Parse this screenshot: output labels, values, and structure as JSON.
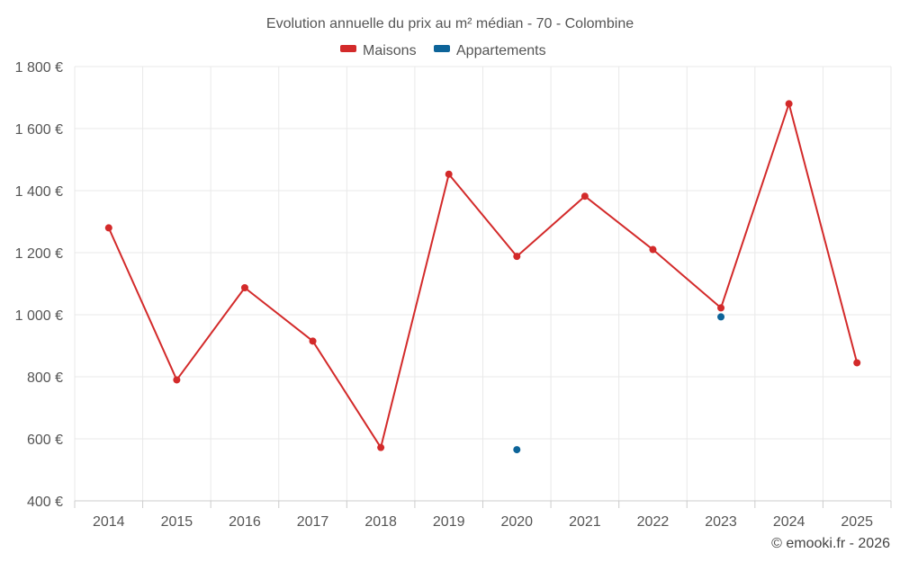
{
  "chart_data": {
    "type": "line",
    "title": "Evolution annuelle du prix au m² médian - 70 - Colombine",
    "categories": [
      "2014",
      "2015",
      "2016",
      "2017",
      "2018",
      "2019",
      "2020",
      "2021",
      "2022",
      "2023",
      "2024",
      "2025"
    ],
    "series": [
      {
        "name": "Maisons",
        "color": "#d32a2a",
        "values": [
          1280,
          790,
          1087,
          915,
          572,
          1453,
          1188,
          1382,
          1210,
          1022,
          1680,
          845
        ]
      },
      {
        "name": "Appartements",
        "color": "#0d6499",
        "values": [
          null,
          null,
          null,
          null,
          null,
          null,
          565,
          null,
          null,
          993,
          null,
          null
        ]
      }
    ],
    "ylim": [
      400,
      1800
    ],
    "yticks": [
      400,
      600,
      800,
      1000,
      1200,
      1400,
      1600,
      1800
    ],
    "ytick_labels": [
      "400 €",
      "600 €",
      "800 €",
      "1 000 €",
      "1 200 €",
      "1 400 €",
      "1 600 €",
      "1 800 €"
    ],
    "grid": true,
    "legend_position": "top-center",
    "xlabel": "",
    "ylabel": ""
  },
  "credit": "© emooki.fr - 2026"
}
